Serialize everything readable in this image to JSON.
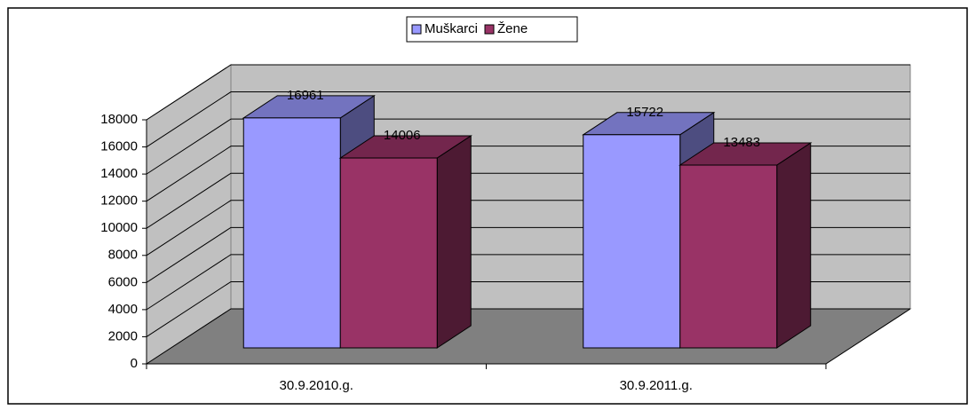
{
  "chart_data": {
    "type": "bar3d",
    "categories": [
      "30.9.2010.g.",
      "30.9.2011.g."
    ],
    "series": [
      {
        "name": "Muškarci",
        "color": "#9999ff",
        "values": [
          16961,
          15722
        ]
      },
      {
        "name": "Žene",
        "color": "#993366",
        "values": [
          14006,
          13483
        ]
      }
    ],
    "ylim": [
      0,
      18000
    ],
    "yticks": [
      0,
      2000,
      4000,
      6000,
      8000,
      10000,
      12000,
      14000,
      16000,
      18000
    ],
    "grid": true,
    "legend": "top"
  }
}
